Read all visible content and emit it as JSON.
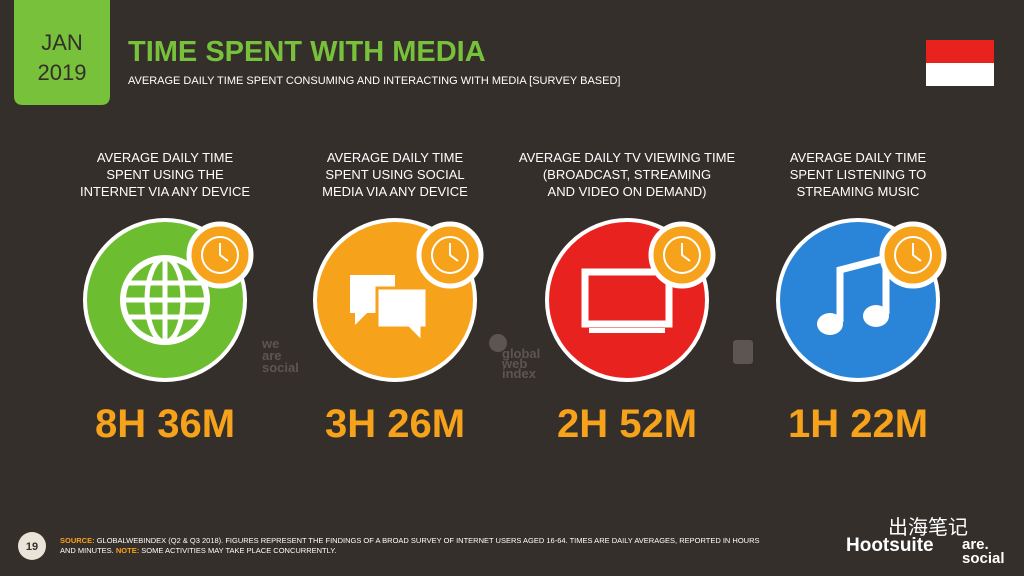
{
  "header": {
    "badge": [
      "JAN",
      "2019"
    ],
    "title": "TIME SPENT WITH MEDIA",
    "subtitle": "AVERAGE DAILY TIME SPENT CONSUMING AND INTERACTING WITH MEDIA [SURVEY BASED]"
  },
  "cards": [
    {
      "label": [
        "AVERAGE DAILY TIME",
        "SPENT USING THE",
        "INTERNET VIA ANY DEVICE"
      ],
      "value": "8H 36M"
    },
    {
      "label": [
        "AVERAGE DAILY TIME",
        "SPENT USING SOCIAL",
        "MEDIA VIA ANY DEVICE"
      ],
      "value": "3H 26M"
    },
    {
      "label": [
        "AVERAGE DAILY TV VIEWING TIME",
        "(BROADCAST, STREAMING",
        "AND VIDEO ON DEMAND)"
      ],
      "value": "2H 52M"
    },
    {
      "label": [
        "AVERAGE DAILY TIME",
        "SPENT LISTENING TO",
        "STREAMING MUSIC"
      ],
      "value": "1H 22M"
    }
  ],
  "watermarks": {
    "we_are_social": [
      "we",
      "are",
      "social"
    ],
    "global_web_index": [
      "global",
      "web",
      "index"
    ]
  },
  "footer": {
    "page": "19",
    "source_label": "SOURCE:",
    "source_text": "GLOBALWEBINDEX (Q2 & Q3 2018). FIGURES REPRESENT THE FINDINGS OF A BROAD SURVEY OF INTERNET USERS AGED 16-64. TIMES ARE DAILY AVERAGES, REPORTED IN HOURS",
    "source_text_2": "AND MINUTES.",
    "note_label": "NOTE:",
    "note_text": "SOME ACTIVITIES MAY TAKE PLACE CONCURRENTLY.",
    "brand": "Hootsuite",
    "brand_2": [
      "are.",
      "social"
    ],
    "wechat": "出海笔记"
  }
}
